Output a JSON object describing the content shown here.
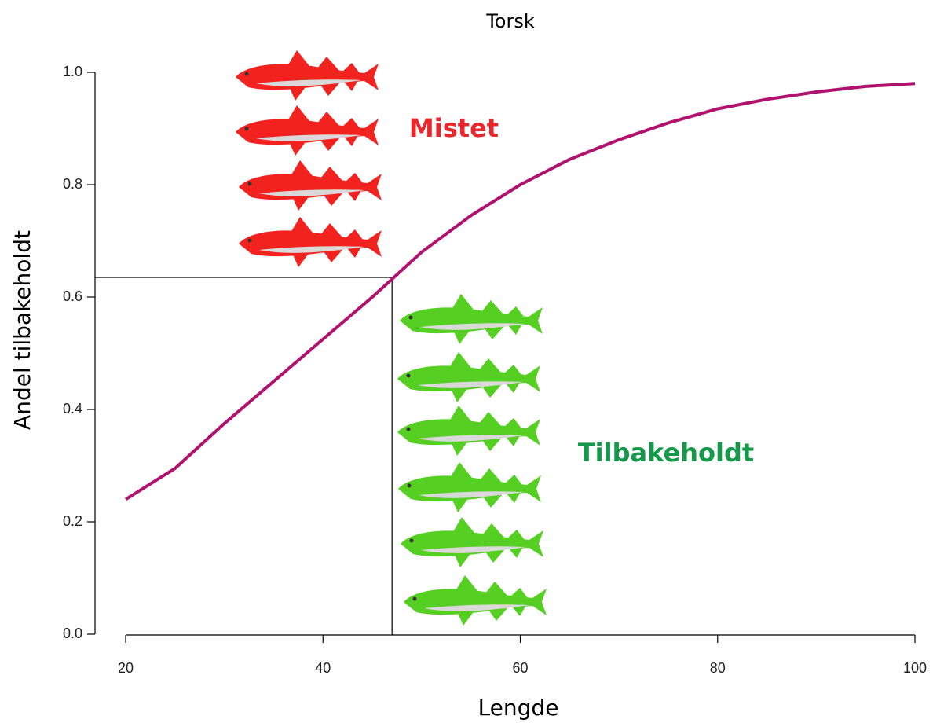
{
  "chart_data": {
    "type": "line",
    "title": "Torsk",
    "x_label": "Lengde",
    "y_label": "Andel tilbakeholdt",
    "x": [
      20,
      25,
      30,
      35,
      40,
      45,
      50,
      55,
      60,
      65,
      70,
      75,
      80,
      85,
      90,
      95,
      100
    ],
    "series": [
      {
        "name": "Torsk",
        "color": "#b0126e",
        "values": [
          0.24,
          0.295,
          0.375,
          0.45,
          0.525,
          0.6,
          0.68,
          0.745,
          0.8,
          0.845,
          0.88,
          0.91,
          0.935,
          0.952,
          0.965,
          0.975,
          0.98
        ]
      }
    ],
    "xlim": [
      20,
      100
    ],
    "ylim": [
      0,
      1
    ],
    "xticks": [
      20,
      40,
      60,
      80,
      100
    ],
    "yticks": [
      {
        "value": 0,
        "label": "0.0"
      },
      {
        "value": 0.2,
        "label": "0.2"
      },
      {
        "value": 0.4,
        "label": "0.4"
      },
      {
        "value": 0.6,
        "label": "0.6"
      },
      {
        "value": 0.8,
        "label": "0.8"
      },
      {
        "value": 1,
        "label": "1.0"
      }
    ],
    "reference_x": 47,
    "reference_y": 0.635,
    "annotations": [
      {
        "text": "Mistet",
        "color": "#e8262b"
      },
      {
        "text": "Tilbakeholdt",
        "color": "#16984a"
      }
    ]
  }
}
